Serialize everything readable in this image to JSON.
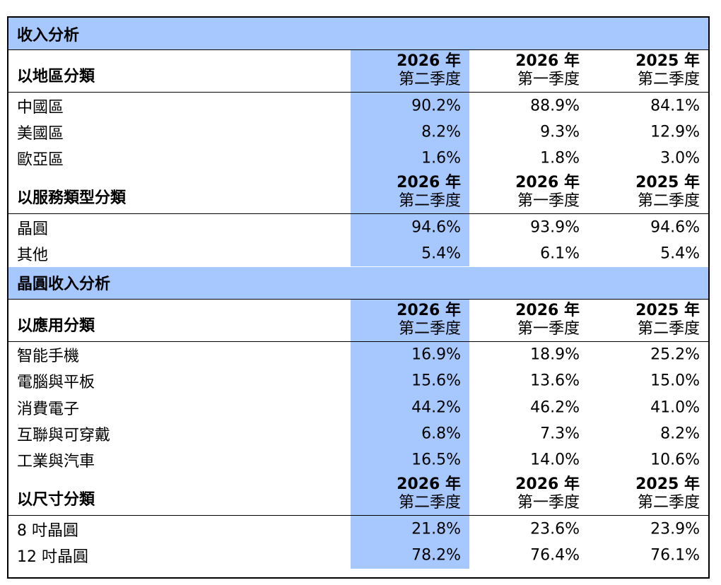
{
  "blocks": [
    {
      "kind": "section",
      "label": "收入分析"
    },
    {
      "kind": "header",
      "label": "以地區分類"
    },
    {
      "kind": "row",
      "label": "中國區",
      "values": [
        "90.2%",
        "88.9%",
        "84.1%"
      ]
    },
    {
      "kind": "row",
      "label": "美國區",
      "values": [
        "8.2%",
        "9.3%",
        "12.9%"
      ]
    },
    {
      "kind": "row",
      "label": "歐亞區",
      "values": [
        "1.6%",
        "1.8%",
        "3.0%"
      ]
    },
    {
      "kind": "header",
      "label": "以服務類型分類"
    },
    {
      "kind": "row",
      "label": "晶圓",
      "values": [
        "94.6%",
        "93.9%",
        "94.6%"
      ]
    },
    {
      "kind": "row",
      "label": "其他",
      "values": [
        "5.4%",
        "6.1%",
        "5.4%"
      ]
    },
    {
      "kind": "section",
      "label": "晶圓收入分析"
    },
    {
      "kind": "header",
      "label": "以應用分類"
    },
    {
      "kind": "row",
      "label": "智能手機",
      "values": [
        "16.9%",
        "18.9%",
        "25.2%"
      ]
    },
    {
      "kind": "row",
      "label": "電腦與平板",
      "values": [
        "15.6%",
        "13.6%",
        "15.0%"
      ]
    },
    {
      "kind": "row",
      "label": "消費電子",
      "values": [
        "44.2%",
        "46.2%",
        "41.0%"
      ]
    },
    {
      "kind": "row",
      "label": "互聯與可穿戴",
      "values": [
        "6.8%",
        "7.3%",
        "8.2%"
      ]
    },
    {
      "kind": "row",
      "label": "工業與汽車",
      "values": [
        "16.5%",
        "14.0%",
        "10.6%"
      ]
    },
    {
      "kind": "header",
      "label": "以尺寸分類"
    },
    {
      "kind": "row",
      "label": "8 吋晶圓",
      "values": [
        "21.8%",
        "23.6%",
        "23.9%"
      ]
    },
    {
      "kind": "row",
      "label": "12 吋晶圓",
      "values": [
        "78.2%",
        "76.4%",
        "76.1%"
      ]
    }
  ],
  "periods": [
    {
      "year": "2026 年",
      "quarter": "第二季度"
    },
    {
      "year": "2026 年",
      "quarter": "第一季度"
    },
    {
      "year": "2025 年",
      "quarter": "第二季度"
    }
  ],
  "colors": {
    "highlight": "#a6c8ff",
    "border": "#000000"
  }
}
